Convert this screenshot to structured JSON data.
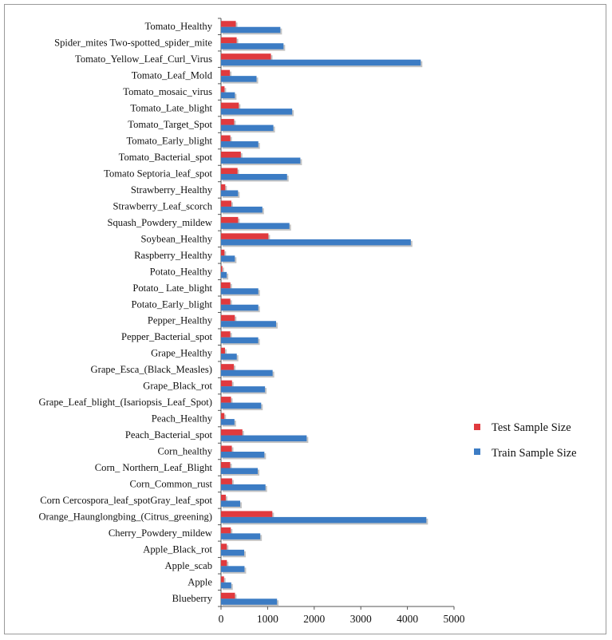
{
  "chart_data": {
    "type": "bar",
    "orientation": "horizontal",
    "title": "",
    "xlabel": "",
    "ylabel": "",
    "xlim": [
      0,
      5000
    ],
    "xticks": [
      0,
      1000,
      2000,
      3000,
      4000,
      5000
    ],
    "grid": false,
    "legend_position": "right",
    "colors": {
      "test": "#e03a3e",
      "train": "#3c7cc4"
    },
    "categories": [
      "Tomato_Healthy",
      "Spider_mites Two-spotted_spider_mite",
      "Tomato_Yellow_Leaf_Curl_Virus",
      "Tomato_Leaf_Mold",
      "Tomato_mosaic_virus",
      "Tomato_Late_blight",
      "Tomato_Target_Spot",
      "Tomato_Early_blight",
      "Tomato_Bacterial_spot",
      "Tomato Septoria_leaf_spot",
      "Strawberry_Healthy",
      "Strawberry_Leaf_scorch",
      "Squash_Powdery_mildew",
      "Soybean_Healthy",
      "Raspberry_Healthy",
      "Potato_Healthy",
      "Potato_ Late_blight",
      "Potato_Early_blight",
      "Pepper_Healthy",
      "Pepper_Bacterial_spot",
      "Grape_Healthy",
      "Grape_Esca_(Black_Measles)",
      "Grape_Black_rot",
      "Grape_Leaf_blight_(Isariopsis_Leaf_Spot)",
      "Peach_Healthy",
      "Peach_Bacterial_spot",
      "Corn_healthy",
      "Corn_ Northern_Leaf_Blight",
      "Corn_Common_rust",
      "Corn Cercospora_leaf_spotGray_leaf_spot",
      "Orange_Haunglongbing_(Citrus_greening)",
      "Cherry_Powdery_mildew",
      "Apple_Black_rot",
      "Apple_scab",
      "Apple",
      "Blueberry"
    ],
    "series": [
      {
        "name": "Test Sample Size",
        "values": [
          318,
          335,
          1071,
          190,
          75,
          382,
          281,
          200,
          425,
          354,
          91,
          222,
          367,
          1017,
          74,
          30,
          200,
          200,
          296,
          199,
          85,
          276,
          236,
          215,
          72,
          459,
          232,
          197,
          238,
          102,
          1101,
          210,
          124,
          126,
          64,
          300
        ]
      },
      {
        "name": "Train Sample Size",
        "values": [
          1273,
          1341,
          4286,
          762,
          298,
          1527,
          1123,
          800,
          1702,
          1417,
          365,
          887,
          1468,
          4073,
          297,
          122,
          800,
          800,
          1182,
          798,
          338,
          1107,
          944,
          861,
          288,
          1838,
          930,
          788,
          954,
          411,
          4406,
          842,
          497,
          504,
          219,
          1202
        ]
      }
    ]
  }
}
